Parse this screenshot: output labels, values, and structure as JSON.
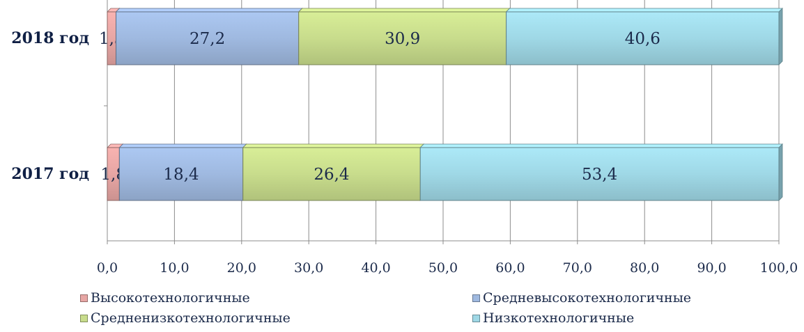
{
  "chart_data": {
    "type": "bar",
    "orientation": "horizontal",
    "stacked": true,
    "categories": [
      "2018 год",
      "2017 год"
    ],
    "series": [
      {
        "name": "Высокотехнологичные",
        "values": [
          1.3,
          1.8
        ],
        "labels": [
          "1,3",
          "1,8"
        ],
        "color": "#e7a6a4"
      },
      {
        "name": "Средневысокотехнологичные",
        "values": [
          27.2,
          18.4
        ],
        "labels": [
          "27,2",
          "18,4"
        ],
        "color": "#9fb9e0"
      },
      {
        "name": "Средненизкотехнологичные",
        "values": [
          30.9,
          26.4
        ],
        "labels": [
          "30,9",
          "26,4"
        ],
        "color": "#c8dc8c"
      },
      {
        "name": "Низкотехнологичные",
        "values": [
          40.6,
          53.4
        ],
        "labels": [
          "40,6",
          "53,4"
        ],
        "color": "#9fd8e6"
      }
    ],
    "x_ticks": [
      "0,0",
      "10,0",
      "20,0",
      "30,0",
      "40,0",
      "50,0",
      "60,0",
      "70,0",
      "80,0",
      "90,0",
      "100,0"
    ],
    "xlim": [
      0,
      100
    ],
    "grid": true,
    "legend_position": "bottom",
    "title": "",
    "xlabel": "",
    "ylabel": ""
  }
}
